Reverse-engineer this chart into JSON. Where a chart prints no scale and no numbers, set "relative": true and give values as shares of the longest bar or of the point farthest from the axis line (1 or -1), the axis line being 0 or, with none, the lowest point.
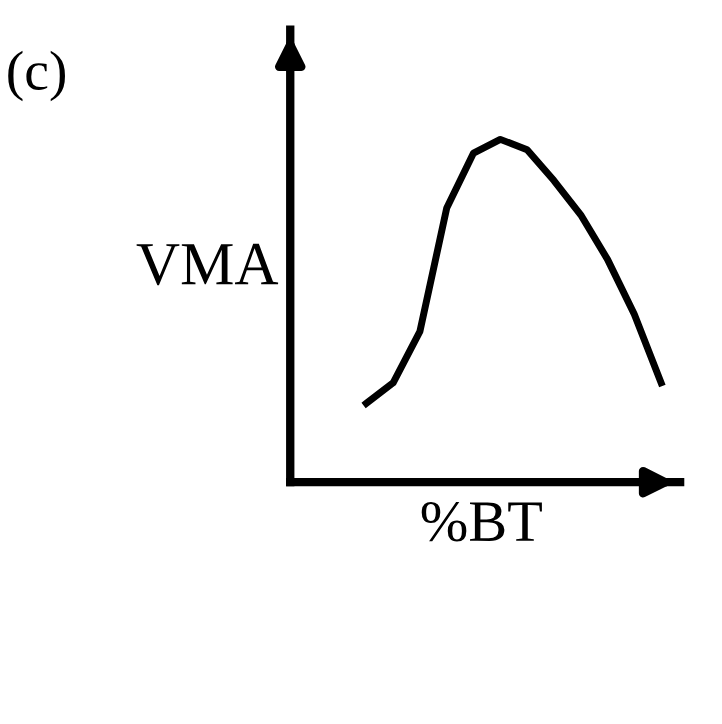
{
  "chart_data": {
    "type": "line",
    "title": "(c)",
    "xlabel": "%BT",
    "ylabel": "VMA",
    "relative": true,
    "categories": [
      null,
      null,
      null,
      null,
      null,
      null,
      null,
      null,
      null,
      null,
      null,
      null
    ],
    "series": [
      {
        "color": "#000000",
        "values": [
          0.23,
          0.29,
          0.44,
          0.8,
          0.96,
          1.0,
          0.97,
          0.88,
          0.78,
          0.65,
          0.49,
          0.29
        ]
      }
    ],
    "grid": false,
    "legend": false,
    "marker": "none",
    "line_style": "solid"
  }
}
